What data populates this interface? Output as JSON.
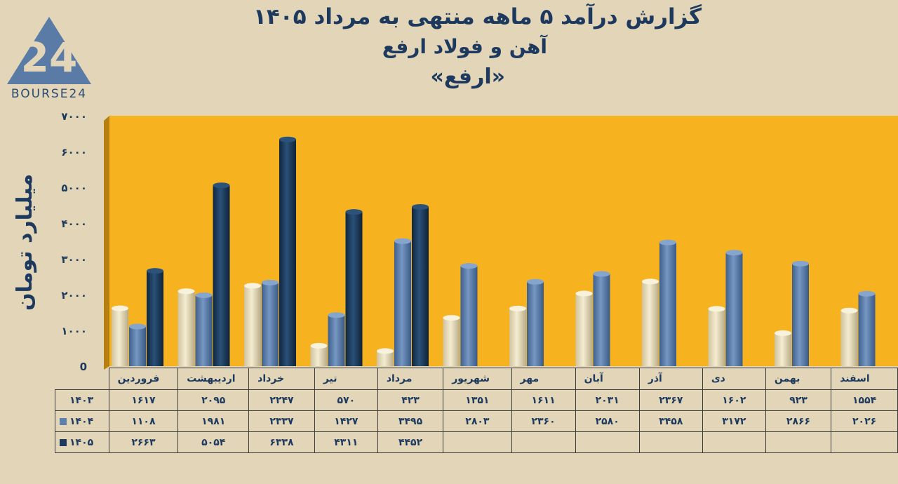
{
  "title": {
    "line1": "گزارش  درآمد ۵ ماهه منتهی به مرداد ۱۴۰۵",
    "line2": "آهن و فولاد ارفع",
    "line3": "«ارفع»"
  },
  "logo": {
    "text": "BOURSE24",
    "number": "24"
  },
  "colors": {
    "background": "#e2d5b8",
    "plot": "#f6b31f",
    "wall": "#b77f0f",
    "series_1403": "#e9dfc0",
    "series_1404": "#5e80ac",
    "series_1405": "#1b3a5c",
    "text": "#1d3a5e"
  },
  "chart_data": {
    "type": "bar",
    "ylabel": "میلیارد تومان",
    "ylim": [
      0,
      7000
    ],
    "yticks": [
      "0",
      "۱۰۰۰",
      "۲۰۰۰",
      "۳۰۰۰",
      "۴۰۰۰",
      "۵۰۰۰",
      "۶۰۰۰",
      "۷۰۰۰"
    ],
    "grid": false,
    "legend": "table-rows",
    "categories": [
      "فروردین",
      "اردیبهشت",
      "خرداد",
      "تیر",
      "مرداد",
      "شهریور",
      "مهر",
      "آبان",
      "آذر",
      "دی",
      "بهمن",
      "اسفند"
    ],
    "series": [
      {
        "name": "۱۴۰۳",
        "values": [
          1617,
          2095,
          2247,
          570,
          423,
          1351,
          1611,
          2031,
          2367,
          1602,
          923,
          1554
        ],
        "labels": [
          "۱۶۱۷",
          "۲۰۹۵",
          "۲۲۴۷",
          "۵۷۰",
          "۴۲۳",
          "۱۳۵۱",
          "۱۶۱۱",
          "۲۰۳۱",
          "۲۳۶۷",
          "۱۶۰۲",
          "۹۲۳",
          "۱۵۵۴"
        ]
      },
      {
        "name": "۱۴۰۴",
        "values": [
          1108,
          1981,
          2337,
          1427,
          3495,
          2803,
          2360,
          2580,
          3458,
          3172,
          2866,
          2026
        ],
        "labels": [
          "۱۱۰۸",
          "۱۹۸۱",
          "۲۳۳۷",
          "۱۴۲۷",
          "۳۴۹۵",
          "۲۸۰۳",
          "۲۳۶۰",
          "۲۵۸۰",
          "۳۴۵۸",
          "۳۱۷۲",
          "۲۸۶۶",
          "۲۰۲۶"
        ]
      },
      {
        "name": "۱۴۰۵",
        "values": [
          2663,
          5054,
          6338,
          4311,
          4452,
          null,
          null,
          null,
          null,
          null,
          null,
          null
        ],
        "labels": [
          "۲۶۶۳",
          "۵۰۵۴",
          "۶۳۳۸",
          "۴۳۱۱",
          "۴۴۵۲",
          "",
          "",
          "",
          "",
          "",
          "",
          ""
        ]
      }
    ]
  }
}
